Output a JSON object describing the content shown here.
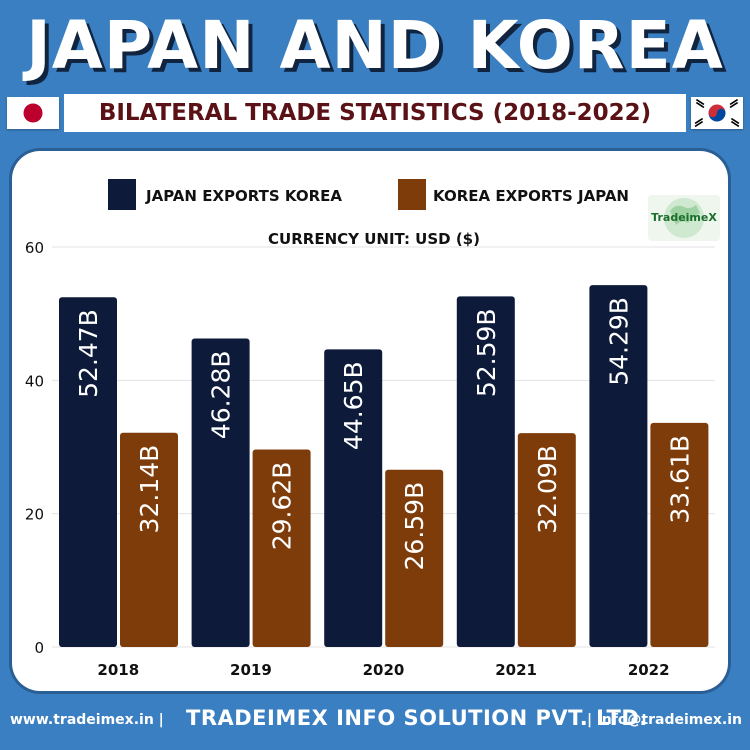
{
  "header": {
    "title": "JAPAN AND KOREA",
    "subtitle": "BILATERAL TRADE STATISTICS (2018-2022)"
  },
  "logo": {
    "text": "TradeimeX"
  },
  "footer": {
    "website": "www.tradeimex.in |",
    "company": "TRADEIMEX INFO SOLUTION PVT. LTD.",
    "email": "| info@tradeimex.in"
  },
  "colors": {
    "background": "#3a7fc1",
    "japan_series": "#0e1a3a",
    "korea_series": "#7e3c0a",
    "japan_flag_red": "#bc002d",
    "korea_red": "#cd2e3a",
    "korea_blue": "#0047a0"
  },
  "chart_data": {
    "type": "bar",
    "currency_note": "CURRENCY UNIT: USD ($)",
    "categories": [
      "2018",
      "2019",
      "2020",
      "2021",
      "2022"
    ],
    "series": [
      {
        "name": "JAPAN EXPORTS KOREA",
        "values": [
          52.47,
          46.28,
          44.65,
          52.59,
          54.29
        ],
        "labels": [
          "52.47B",
          "46.28B",
          "44.65B",
          "52.59B",
          "54.29B"
        ]
      },
      {
        "name": "KOREA EXPORTS JAPAN",
        "values": [
          32.14,
          29.62,
          26.59,
          32.09,
          33.61
        ],
        "labels": [
          "32.14B",
          "29.62B",
          "26.59B",
          "32.09B",
          "33.61B"
        ]
      }
    ],
    "yticks": [
      "0",
      "20",
      "40",
      "60"
    ],
    "ylim": [
      0,
      60
    ],
    "grid": true,
    "legend_position": "top"
  }
}
